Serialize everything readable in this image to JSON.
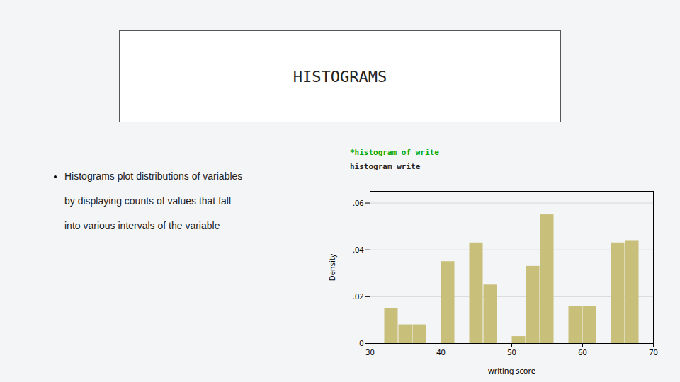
{
  "chart_data": {
    "type": "histogram",
    "title": "HISTOGRAMS",
    "annotations": [
      {
        "text": "Histograms plot distributions of variables",
        "color": "#222222"
      },
      {
        "text": "by displaying counts of values that fall",
        "color": "#222222"
      },
      {
        "text": "into various intervals of the variable",
        "color": "#222222"
      },
      {
        "text": "*histogram of write",
        "color": "#00aa00"
      },
      {
        "text": "histogram write",
        "color": "#222222"
      }
    ],
    "x_label": "writing score",
    "y_label": "Density",
    "bins": [
      30,
      32,
      34,
      36,
      38,
      40,
      42,
      44,
      46,
      48,
      50,
      52,
      54,
      56,
      58,
      60,
      62,
      64,
      66,
      68,
      70
    ],
    "values": [
      0.0,
      0.015,
      0.008,
      0.008,
      0.0,
      0.035,
      0.0,
      0.043,
      0.025,
      0.0,
      0.003,
      0.033,
      0.055,
      0.0,
      0.016,
      0.016,
      0.0,
      0.043,
      0.044,
      0.0
    ],
    "color": "#c8c07a",
    "xlim": [
      30,
      70
    ],
    "ylim": [
      0,
      0.065
    ],
    "xticks": [
      30,
      40,
      50,
      60,
      70
    ],
    "yticks": [
      0,
      {
        "value": 0.02,
        "label": ".02"
      },
      {
        "value": 0.04,
        "label": ".04"
      },
      {
        "value": 0.06,
        "label": ".06"
      }
    ],
    "grid": true
  }
}
